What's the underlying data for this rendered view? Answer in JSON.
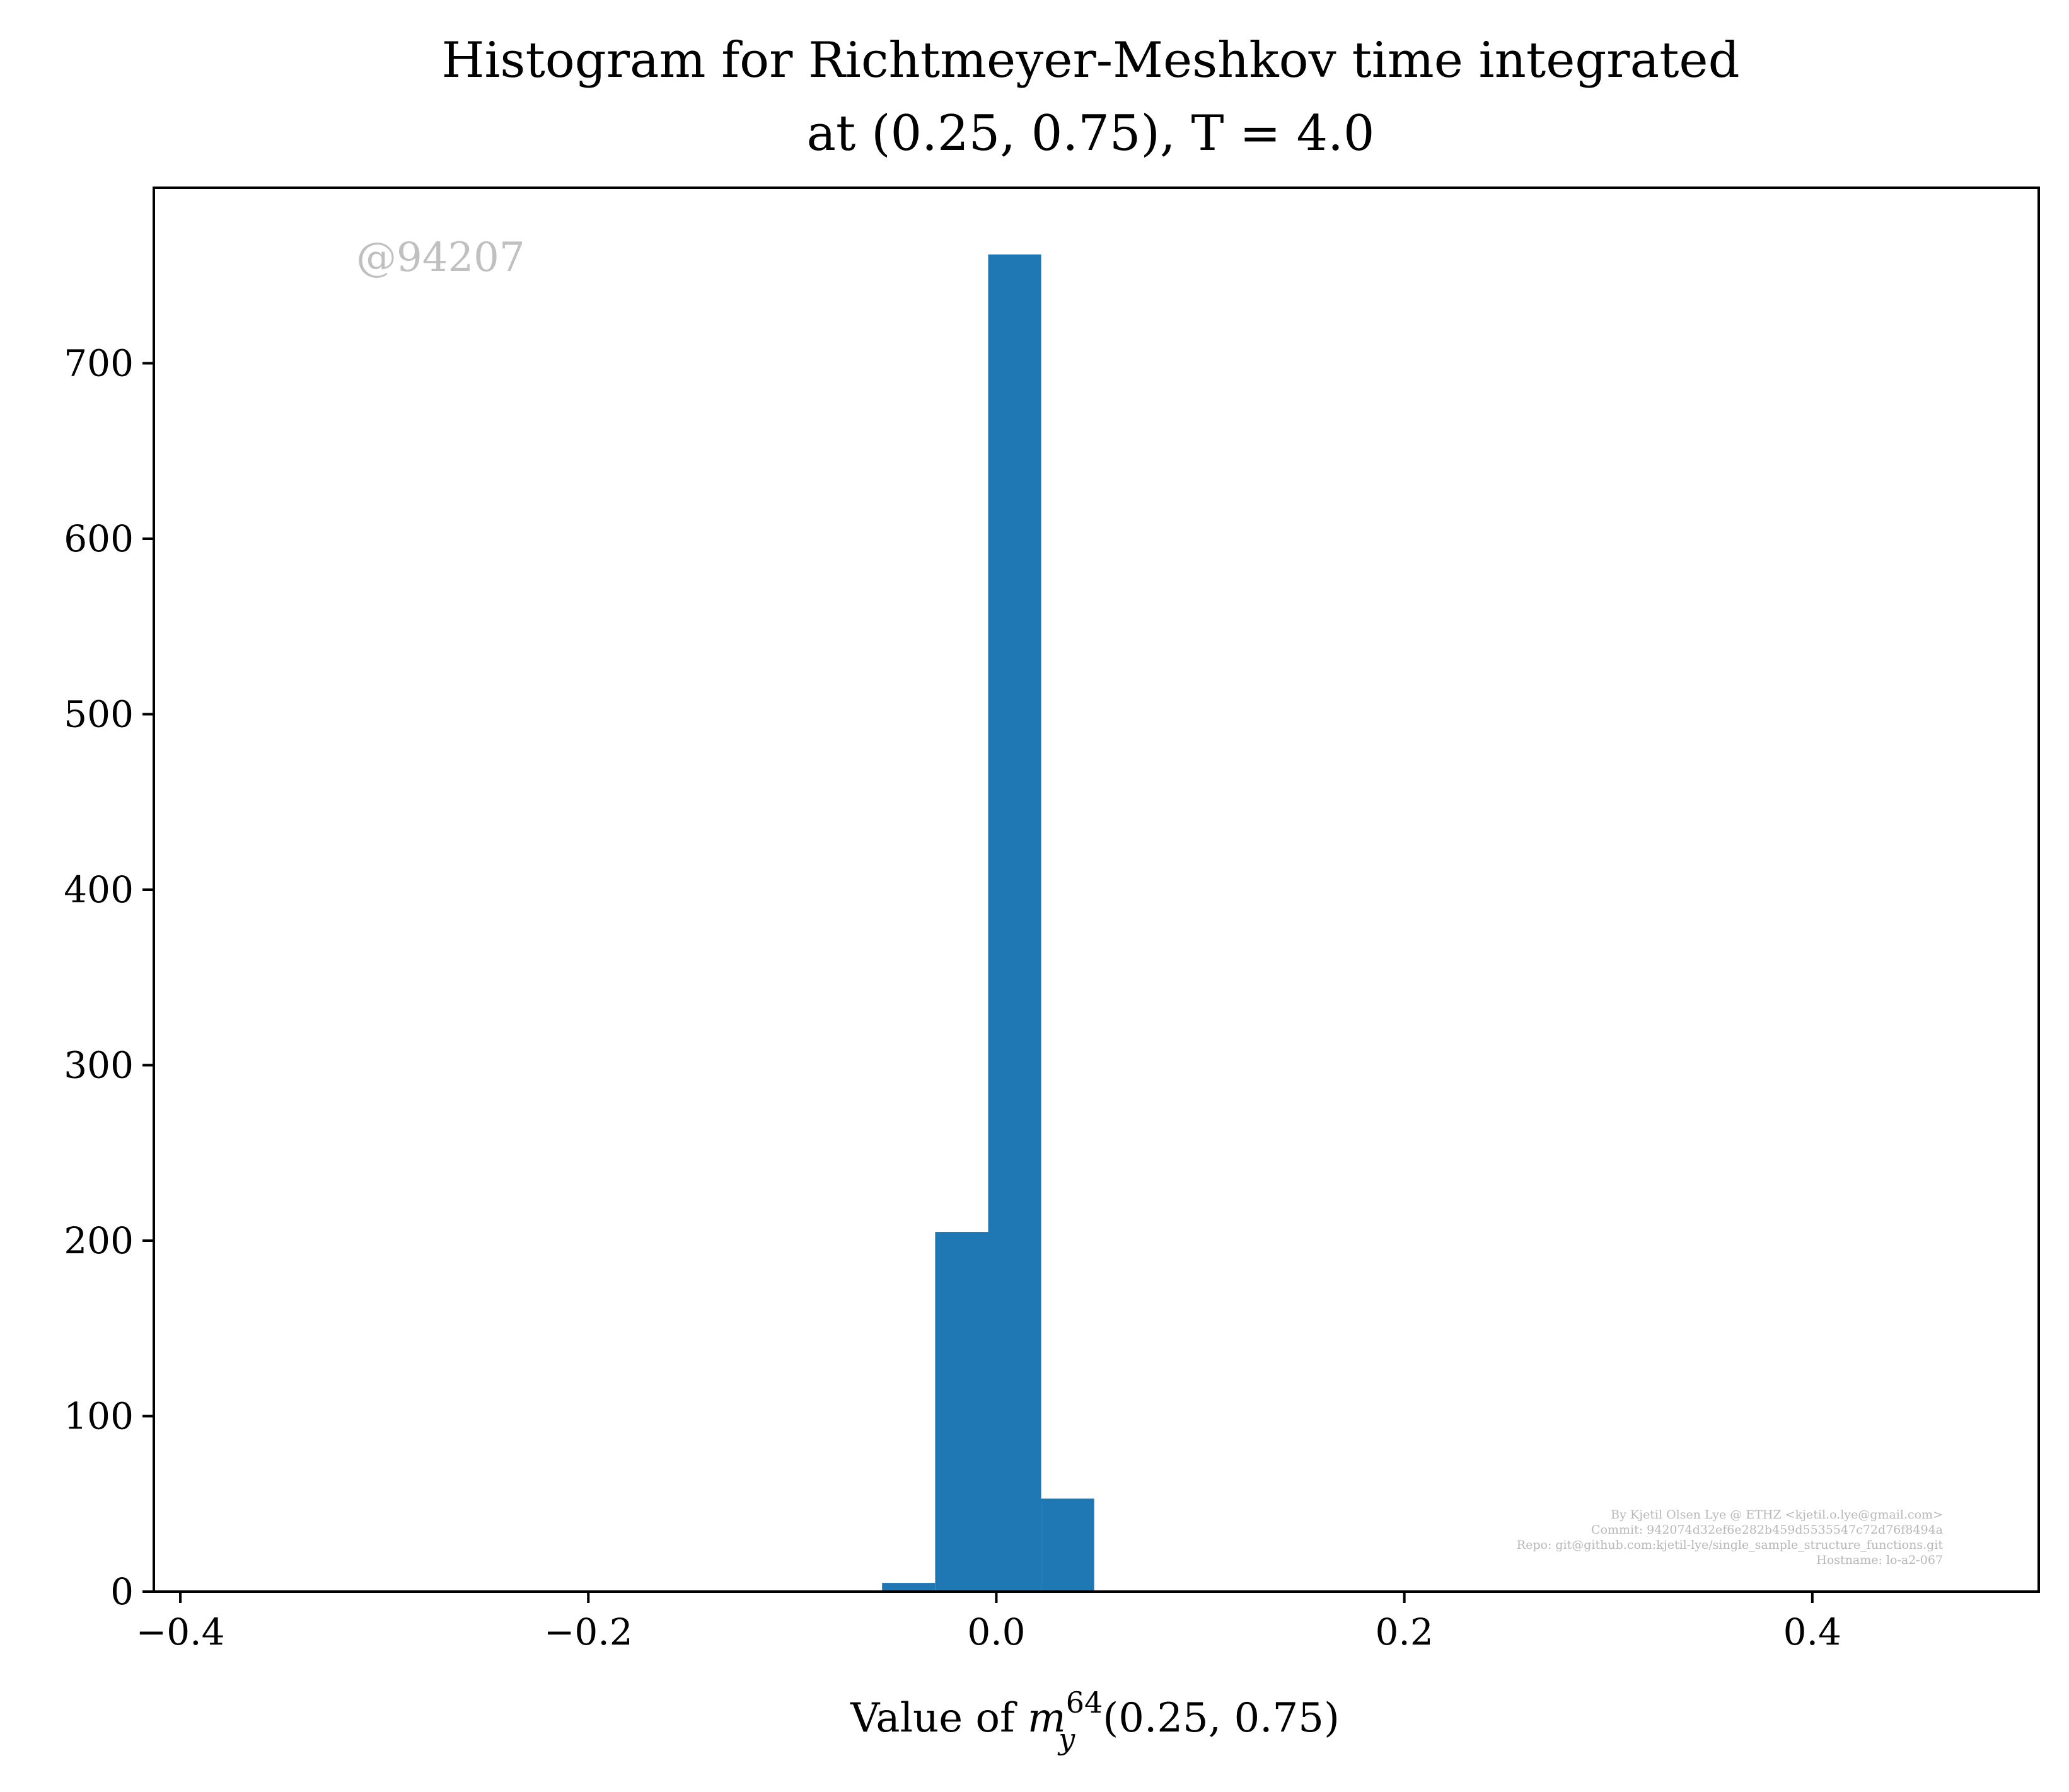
{
  "chart_data": {
    "type": "bar",
    "title": [
      "Histogram for Richtmeyer-Meshkov time integrated",
      "at (0.25, 0.75), T = 4.0"
    ],
    "xlabel": {
      "prefix": "Value of ",
      "variable": "m",
      "superscript": "64",
      "subscript": "y",
      "suffix": "(0.25, 0.75)"
    },
    "ylabel": "",
    "xlim": [
      -0.413,
      0.511
    ],
    "ylim": [
      0,
      800
    ],
    "x_ticks": [
      -0.4,
      -0.2,
      0.0,
      0.2,
      0.4
    ],
    "x_tick_labels": [
      "−0.4",
      "−0.2",
      "0.0",
      "0.2",
      "0.4"
    ],
    "y_ticks": [
      0,
      100,
      200,
      300,
      400,
      500,
      600,
      700
    ],
    "y_tick_labels": [
      "0",
      "100",
      "200",
      "300",
      "400",
      "500",
      "600",
      "700"
    ],
    "bins": [
      {
        "x0": -0.056,
        "x1": -0.03,
        "count": 5
      },
      {
        "x0": -0.03,
        "x1": -0.004,
        "count": 205
      },
      {
        "x0": -0.004,
        "x1": 0.022,
        "count": 762
      },
      {
        "x0": 0.022,
        "x1": 0.048,
        "count": 53
      }
    ],
    "bar_color": "#1f77b4",
    "grid": false,
    "legend": "none"
  },
  "watermark": "@94207",
  "credits": [
    "By Kjetil Olsen Lye @ ETHZ <kjetil.o.lye@gmail.com>",
    "Commit: 942074d32ef6e282b459d5535547c72d76f8494a",
    "Repo: git@github.com:kjetil-lye/single_sample_structure_functions.git",
    "Hostname: lo-a2-067"
  ]
}
